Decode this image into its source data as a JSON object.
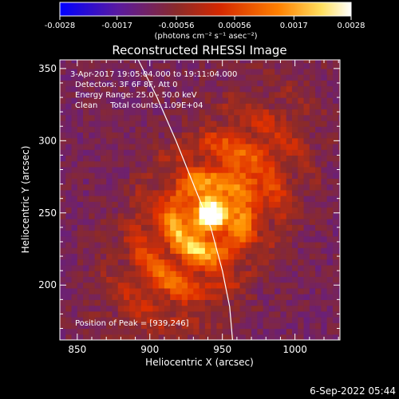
{
  "chart_data": {
    "type": "heatmap",
    "title": "Reconstructed RHESSI Image",
    "xlabel": "Heliocentric X (arcsec)",
    "ylabel": "Heliocentric Y (arcsec)",
    "xlim": [
      838,
      1031
    ],
    "ylim": [
      162,
      356
    ],
    "xticks": [
      850,
      900,
      950,
      1000
    ],
    "yticks": [
      200,
      250,
      300,
      350
    ],
    "colorbar": {
      "min": -0.0028,
      "max": 0.0028,
      "tick_values": [
        -0.0028,
        -0.0017,
        -0.00056,
        0.00056,
        0.0017,
        0.0028
      ],
      "tick_labels": [
        "-0.0028",
        "-0.0017",
        "-0.00056",
        "0.00056",
        "0.0017",
        "0.0028"
      ],
      "unit_label": "(photons cm⁻² s⁻¹ asec⁻²)"
    },
    "annotations": [
      "3-Apr-2017 19:05:04.000 to 19:11:04.000",
      "Detectors: 3F 6F 8F, Att 0",
      "Energy Range: 25.0 - 50.0 keV",
      "Clean     Total counts: 1.09E+04"
    ],
    "peak": {
      "x": 939,
      "y": 246,
      "label": "Position of Peak = [939,246]"
    },
    "pixel_size_arcsec": 4,
    "colormap": [
      "#0000ff",
      "#5a1aa0",
      "#8a2a2a",
      "#e03000",
      "#ff9000",
      "#ffff80",
      "#ffffff"
    ],
    "limb_curve": [
      [
        892,
        356
      ],
      [
        905,
        330
      ],
      [
        918,
        300
      ],
      [
        930,
        270
      ],
      [
        942,
        240
      ],
      [
        950,
        210
      ],
      [
        955,
        185
      ],
      [
        957,
        162
      ]
    ]
  },
  "footer": {
    "timestamp": "6-Sep-2022 05:44"
  }
}
